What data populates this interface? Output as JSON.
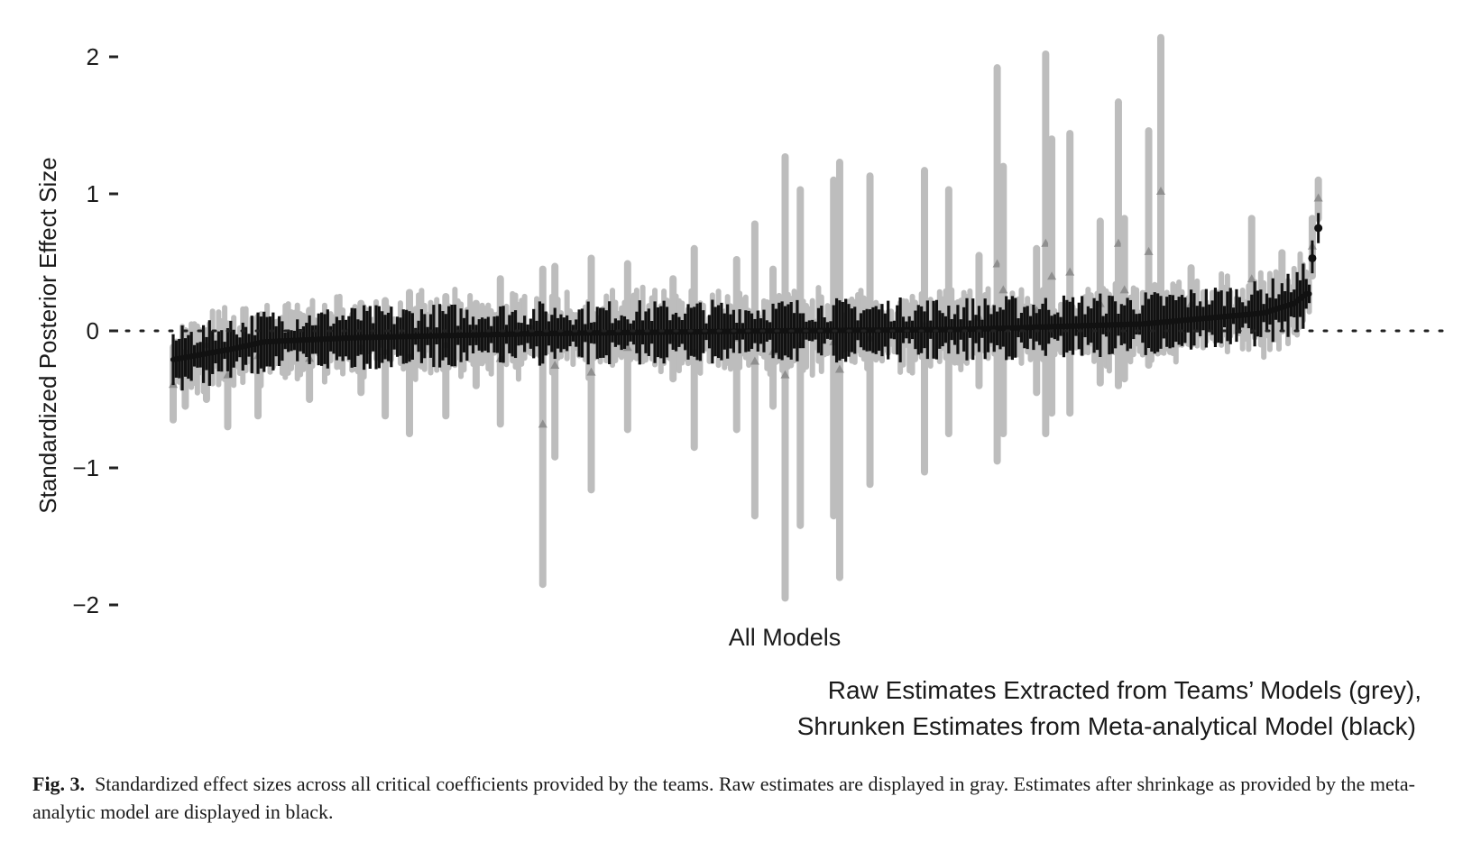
{
  "chart_data": {
    "type": "scatter",
    "ylabel": "Standardized Posterior Effect Size",
    "xlabel": "All Models",
    "legend_note_line1": "Raw Estimates Extracted from Teams’ Models (grey),",
    "legend_note_line2": "Shrunken Estimates from Meta-analytical Model (black)",
    "ylim": [
      -2,
      2
    ],
    "yticks": [
      "2",
      "1",
      "0",
      "−1",
      "−2"
    ],
    "ytick_values": [
      2,
      1,
      0,
      -1,
      -2
    ],
    "reference_line": 0,
    "grid": false,
    "series": [
      {
        "role": "raw",
        "color": "#bdbdbd",
        "points": [
          {
            "i": 0,
            "y": -0.39,
            "lo": -0.65,
            "hi": -0.12
          },
          {
            "i": 4,
            "y": -0.15,
            "lo": -0.55,
            "hi": 0.0
          },
          {
            "i": 11,
            "y": -0.1,
            "lo": -0.5,
            "hi": 0.0
          },
          {
            "i": 18,
            "y": -0.32,
            "lo": -0.7,
            "hi": 0.05
          },
          {
            "i": 28,
            "y": -0.18,
            "lo": -0.62,
            "hi": 0.1
          },
          {
            "i": 45,
            "y": -0.2,
            "lo": -0.5,
            "hi": 0.15
          },
          {
            "i": 62,
            "y": -0.12,
            "lo": -0.45,
            "hi": 0.2
          },
          {
            "i": 70,
            "y": -0.15,
            "lo": -0.62,
            "hi": 0.22
          },
          {
            "i": 78,
            "y": -0.18,
            "lo": -0.75,
            "hi": 0.28
          },
          {
            "i": 90,
            "y": -0.1,
            "lo": -0.62,
            "hi": 0.25
          },
          {
            "i": 100,
            "y": -0.05,
            "lo": -0.4,
            "hi": 0.2
          },
          {
            "i": 108,
            "y": -0.2,
            "lo": -0.68,
            "hi": 0.38
          },
          {
            "i": 122,
            "y": -0.68,
            "lo": -1.85,
            "hi": 0.45
          },
          {
            "i": 126,
            "y": -0.25,
            "lo": -0.92,
            "hi": 0.47
          },
          {
            "i": 138,
            "y": -0.3,
            "lo": -1.16,
            "hi": 0.53
          },
          {
            "i": 150,
            "y": -0.12,
            "lo": -0.72,
            "hi": 0.49
          },
          {
            "i": 165,
            "y": -0.05,
            "lo": -0.35,
            "hi": 0.38
          },
          {
            "i": 172,
            "y": -0.15,
            "lo": -0.85,
            "hi": 0.6
          },
          {
            "i": 186,
            "y": -0.05,
            "lo": -0.72,
            "hi": 0.52
          },
          {
            "i": 192,
            "y": -0.22,
            "lo": -1.35,
            "hi": 0.78
          },
          {
            "i": 198,
            "y": -0.15,
            "lo": -0.55,
            "hi": 0.45
          },
          {
            "i": 202,
            "y": -0.32,
            "lo": -1.95,
            "hi": 1.27
          },
          {
            "i": 207,
            "y": -0.1,
            "lo": -1.42,
            "hi": 1.03
          },
          {
            "i": 218,
            "y": -0.08,
            "lo": -1.35,
            "hi": 1.1
          },
          {
            "i": 220,
            "y": -0.28,
            "lo": -1.8,
            "hi": 1.23
          },
          {
            "i": 230,
            "y": -0.05,
            "lo": -1.12,
            "hi": 1.13
          },
          {
            "i": 248,
            "y": 0.05,
            "lo": -1.03,
            "hi": 1.17
          },
          {
            "i": 256,
            "y": 0.02,
            "lo": -0.75,
            "hi": 1.03
          },
          {
            "i": 266,
            "y": 0.1,
            "lo": -0.4,
            "hi": 0.55
          },
          {
            "i": 272,
            "y": 0.49,
            "lo": -0.95,
            "hi": 1.92
          },
          {
            "i": 274,
            "y": 0.3,
            "lo": -0.75,
            "hi": 1.2
          },
          {
            "i": 285,
            "y": 0.15,
            "lo": -0.45,
            "hi": 0.6
          },
          {
            "i": 288,
            "y": 0.64,
            "lo": -0.75,
            "hi": 2.02
          },
          {
            "i": 290,
            "y": 0.4,
            "lo": -0.6,
            "hi": 1.4
          },
          {
            "i": 296,
            "y": 0.43,
            "lo": -0.6,
            "hi": 1.44
          },
          {
            "i": 306,
            "y": 0.2,
            "lo": -0.38,
            "hi": 0.8
          },
          {
            "i": 312,
            "y": 0.64,
            "lo": -0.4,
            "hi": 1.67
          },
          {
            "i": 314,
            "y": 0.3,
            "lo": -0.35,
            "hi": 0.82
          },
          {
            "i": 322,
            "y": 0.58,
            "lo": -0.25,
            "hi": 1.46
          },
          {
            "i": 326,
            "y": 1.02,
            "lo": -0.15,
            "hi": 2.14
          },
          {
            "i": 336,
            "y": 0.2,
            "lo": -0.1,
            "hi": 0.46
          },
          {
            "i": 356,
            "y": 0.38,
            "lo": 0.0,
            "hi": 0.82
          },
          {
            "i": 366,
            "y": 0.25,
            "lo": 0.0,
            "hi": 0.57
          },
          {
            "i": 376,
            "y": 0.62,
            "lo": 0.4,
            "hi": 0.82
          },
          {
            "i": 378,
            "y": 0.97,
            "lo": 0.82,
            "hi": 1.1
          }
        ]
      },
      {
        "role": "shrunken",
        "color": "#111111",
        "n_models": 380,
        "curve": [
          [
            0,
            -0.21
          ],
          [
            20,
            -0.13
          ],
          [
            30,
            -0.08
          ],
          [
            60,
            -0.05
          ],
          [
            120,
            -0.02
          ],
          [
            200,
            0.0
          ],
          [
            260,
            0.01
          ],
          [
            320,
            0.05
          ],
          [
            360,
            0.13
          ],
          [
            370,
            0.2
          ],
          [
            374,
            0.27
          ]
        ],
        "extra_points": [
          {
            "i": 376,
            "y": 0.53,
            "lo": 0.42,
            "hi": 0.66
          },
          {
            "i": 378,
            "y": 0.75,
            "lo": 0.64,
            "hi": 0.86
          }
        ]
      }
    ]
  },
  "caption": {
    "label": "Fig. 3.",
    "text": "Standardized effect sizes across all critical coefficients provided by the teams. Raw estimates are displayed in gray. Estimates after shrinkage as provided by the meta-analytic model are displayed in black."
  }
}
